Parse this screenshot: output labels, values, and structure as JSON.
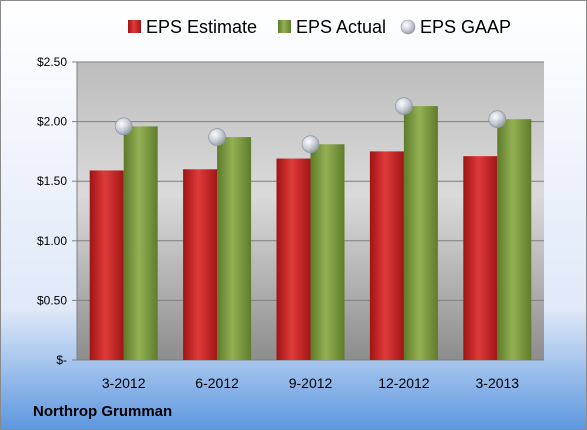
{
  "chart_data": {
    "type": "bar",
    "company": "Northrop Grumman",
    "categories": [
      "3-2012",
      "6-2012",
      "9-2012",
      "12-2012",
      "3-2013"
    ],
    "series": [
      {
        "name": "EPS Estimate",
        "kind": "bar",
        "color": "#cc2222",
        "values": [
          1.59,
          1.6,
          1.69,
          1.75,
          1.71
        ]
      },
      {
        "name": "EPS Actual",
        "kind": "bar",
        "color": "#7a9a3a",
        "values": [
          1.96,
          1.87,
          1.81,
          2.13,
          2.02
        ]
      },
      {
        "name": "EPS GAAP",
        "kind": "marker",
        "color": "#b0b8c8",
        "values": [
          1.96,
          1.87,
          1.81,
          2.13,
          2.02
        ]
      }
    ],
    "y_ticks": [
      {
        "value": 0,
        "label": "$-"
      },
      {
        "value": 0.5,
        "label": "$0.50"
      },
      {
        "value": 1.0,
        "label": "$1.00"
      },
      {
        "value": 1.5,
        "label": "$1.50"
      },
      {
        "value": 2.0,
        "label": "$2.00"
      },
      {
        "value": 2.5,
        "label": "$2.50"
      }
    ],
    "ylim": [
      0,
      2.5
    ],
    "grid": true,
    "legend_position": "top"
  }
}
